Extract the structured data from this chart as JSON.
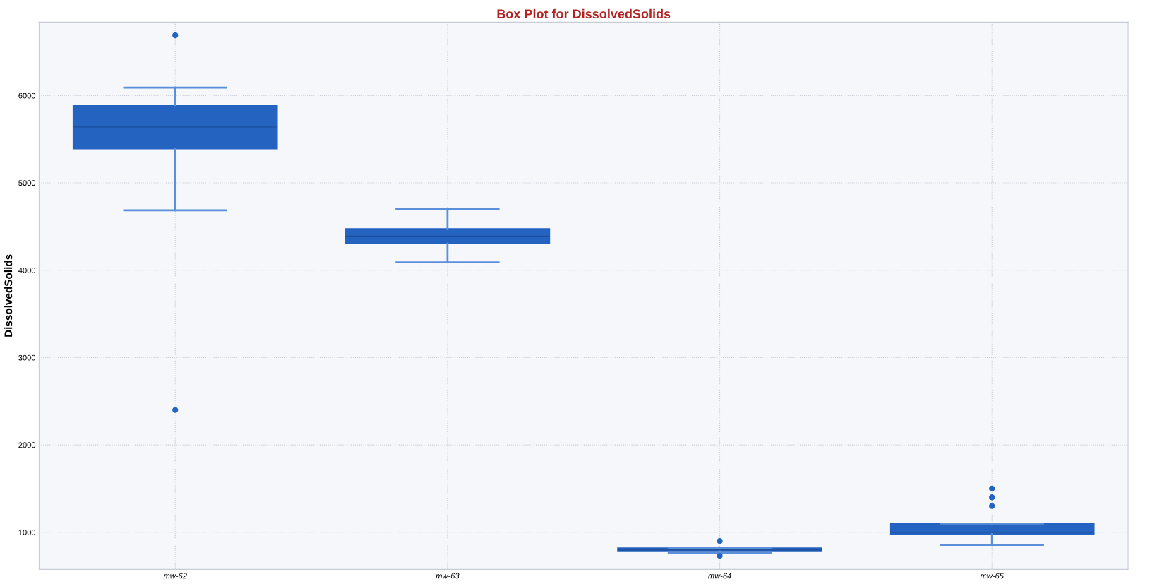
{
  "chart_data": {
    "type": "box",
    "title": "Box Plot for DissolvedSolids",
    "ylabel": "DissolvedSolids",
    "categories": [
      "mw-62",
      "mw-63",
      "mw-64",
      "mw-65"
    ],
    "boxes": [
      {
        "low": 4685,
        "q1": 5390,
        "median": 5640,
        "q3": 5890,
        "high": 6090,
        "outliers": [
          6690,
          2400
        ]
      },
      {
        "low": 4090,
        "q1": 4305,
        "median": 4390,
        "q3": 4475,
        "high": 4700
      },
      {
        "low": 760,
        "q1": 788,
        "median": 798,
        "q3": 820,
        "high": 820,
        "outliers": [
          900,
          730
        ]
      },
      {
        "low": 855,
        "q1": 980,
        "median": 1000,
        "q3": 1100,
        "high": 1100,
        "outliers": [
          1500,
          1400,
          1300
        ]
      }
    ],
    "color": "#2563c0",
    "ylim": [
      575,
      6840
    ],
    "yticks": [
      1000,
      2000,
      3000,
      4000,
      5000,
      6000
    ],
    "grid": true
  }
}
